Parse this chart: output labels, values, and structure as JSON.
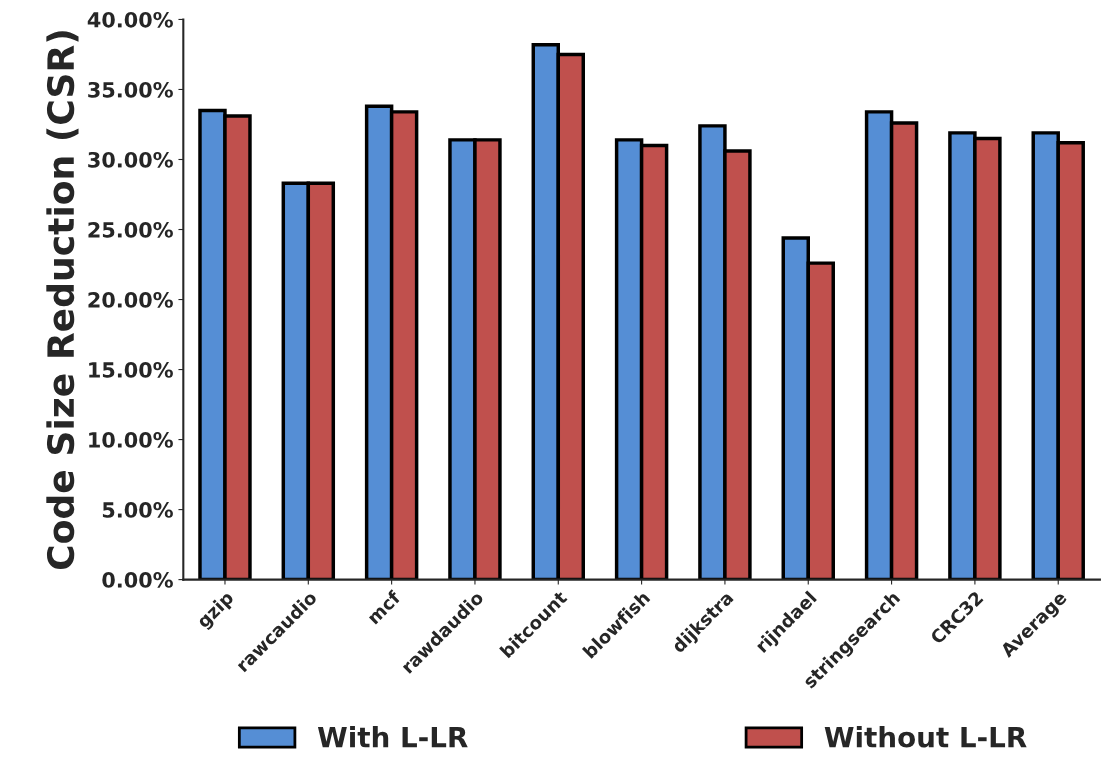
{
  "chart_data": {
    "type": "bar",
    "ylabel": "Code Size Reduction (CSR)",
    "categories": [
      "gzip",
      "rawcaudio",
      "mcf",
      "rawdaudio",
      "bitcount",
      "blowfish",
      "dijkstra",
      "rijndael",
      "stringsearch",
      "CRC32",
      "Average"
    ],
    "series": [
      {
        "name": "With L-LR",
        "color": "#558ed5",
        "values": [
          33.5,
          28.3,
          33.8,
          31.4,
          38.2,
          31.4,
          32.4,
          24.4,
          33.4,
          31.9,
          31.9
        ]
      },
      {
        "name": "Without L-LR",
        "color": "#c0504d",
        "values": [
          33.1,
          28.3,
          33.4,
          31.4,
          37.5,
          31.0,
          30.6,
          22.6,
          32.6,
          31.5,
          31.2
        ]
      }
    ],
    "ylim": [
      0,
      40
    ],
    "yticks": [
      {
        "value": 0,
        "label": "0.00%"
      },
      {
        "value": 5,
        "label": "5.00%"
      },
      {
        "value": 10,
        "label": "10.00%"
      },
      {
        "value": 15,
        "label": "15.00%"
      },
      {
        "value": 20,
        "label": "20.00%"
      },
      {
        "value": 25,
        "label": "25.00%"
      },
      {
        "value": 30,
        "label": "30.00%"
      },
      {
        "value": 35,
        "label": "35.00%"
      },
      {
        "value": 40,
        "label": "40.00%"
      }
    ],
    "grid": false,
    "legend": "bottom"
  }
}
